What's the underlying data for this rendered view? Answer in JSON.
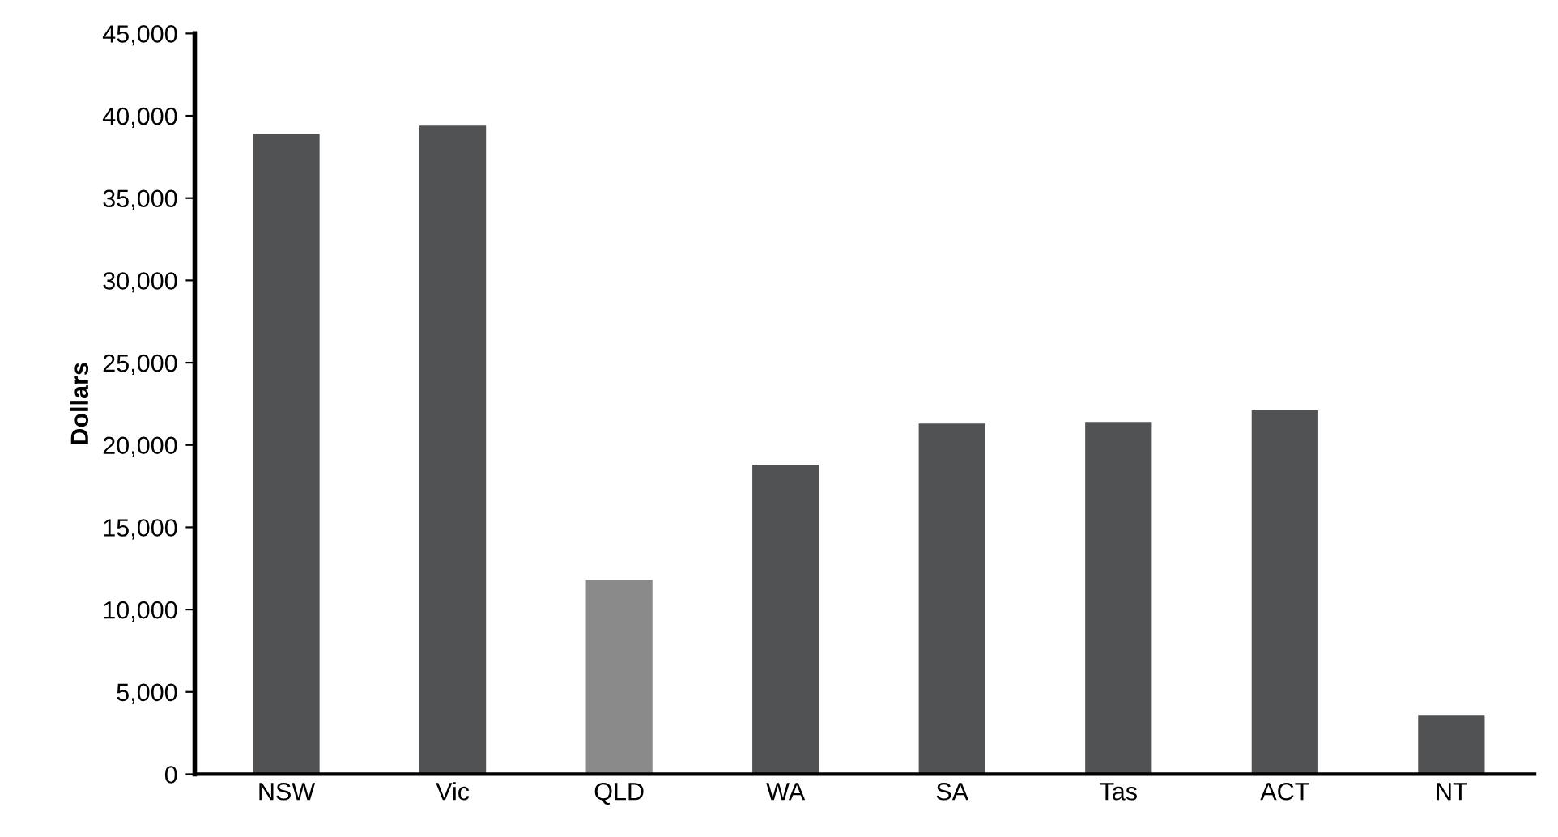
{
  "chart_data": {
    "type": "bar",
    "ylabel": "Dollars",
    "categories": [
      "NSW",
      "Vic",
      "QLD",
      "WA",
      "SA",
      "Tas",
      "ACT",
      "NT"
    ],
    "values": [
      38900,
      39400,
      11800,
      18800,
      21300,
      21400,
      22100,
      3600
    ],
    "colors": [
      "#505253",
      "#505253",
      "#8a8a8a",
      "#505253",
      "#505253",
      "#505253",
      "#505253",
      "#505253"
    ],
    "ylim": [
      0,
      45000
    ],
    "yticks": [
      0,
      {
        "value": 5000,
        "label": "5,000"
      },
      {
        "value": 10000,
        "label": "10,000"
      },
      {
        "value": 15000,
        "label": "15,000"
      },
      {
        "value": 20000,
        "label": "20,000"
      },
      {
        "value": 25000,
        "label": "25,000"
      },
      {
        "value": 30000,
        "label": "30,000"
      },
      {
        "value": 35000,
        "label": "35,000"
      },
      {
        "value": 40000,
        "label": "40,000"
      },
      {
        "value": 45000,
        "label": "45,000"
      }
    ],
    "grid": false
  }
}
